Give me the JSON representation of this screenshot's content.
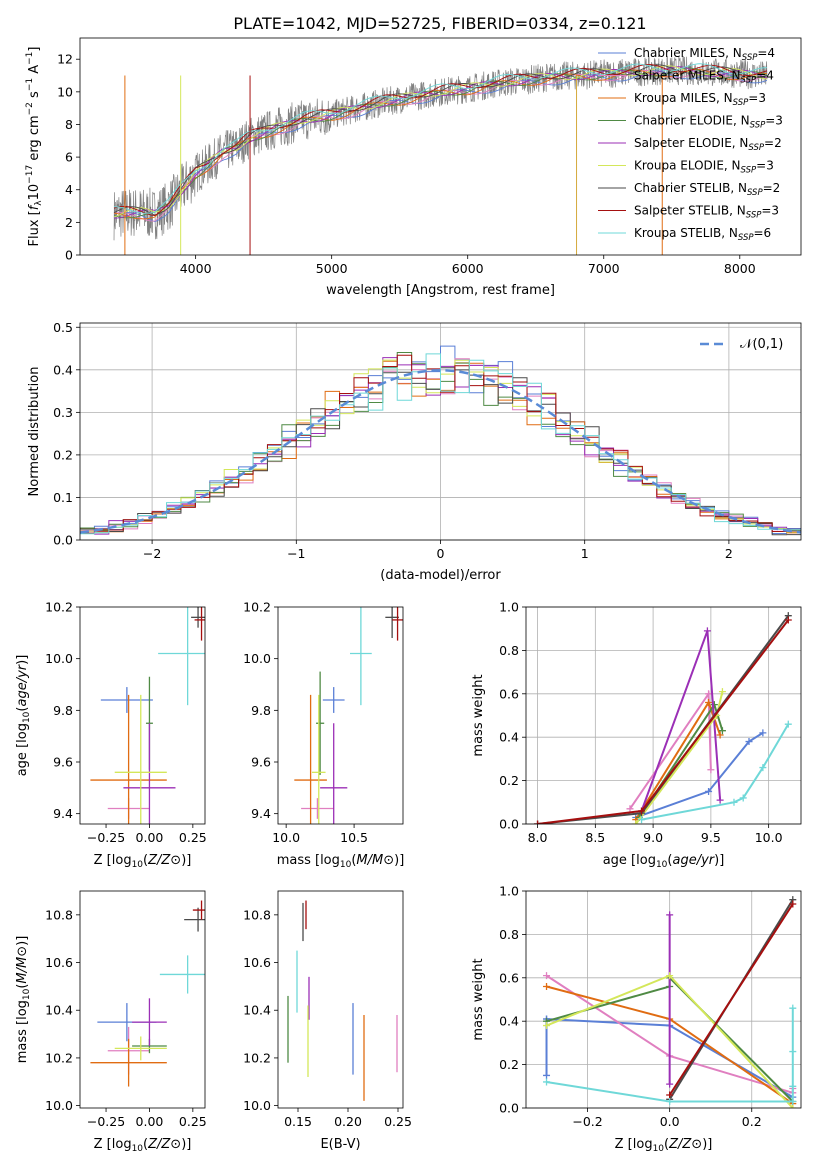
{
  "figure": {
    "title": "PLATE=1042, MJD=52725, FIBERID=0334, z=0.121"
  },
  "colors": {
    "Chabrier MILES": "#5a7fd6",
    "Salpeter MILES": "#e07fc0",
    "Kroupa MILES": "#e06c12",
    "Chabrier ELODIE": "#4f8a44",
    "Salpeter ELODIE": "#9b2fb6",
    "Kroupa ELODIE": "#d4e75a",
    "Chabrier STELIB": "#4a4a4a",
    "Salpeter STELIB": "#a50f0f",
    "Kroupa STELIB": "#6fd8d8"
  },
  "chart_data": [
    {
      "id": "spectrum",
      "type": "line",
      "xlabel": "wavelength [Angstrom, rest frame]",
      "ylabel": "Flux [f_λ10^-17 erg cm^-2 s^-1 A^-1]",
      "xlim": [
        3150,
        8450
      ],
      "ylim": [
        0,
        13.3
      ],
      "xticks": [
        4000,
        5000,
        6000,
        7000,
        8000
      ],
      "yticks": [
        0,
        2,
        4,
        6,
        8,
        10,
        12
      ],
      "data_series": {
        "name": "data",
        "x": [
          3400,
          3500,
          3600,
          3700,
          3800,
          3900,
          4000,
          4100,
          4200,
          4300,
          4400,
          4600,
          4800,
          5000,
          5200,
          5400,
          5600,
          5800,
          6000,
          6200,
          6400,
          6600,
          6800,
          7000,
          7200,
          7400,
          7600,
          7800,
          8000,
          8200
        ],
        "y": [
          2.5,
          2.6,
          2.6,
          2.5,
          3.0,
          4.0,
          5.0,
          5.6,
          6.3,
          6.6,
          7.2,
          7.8,
          8.3,
          8.6,
          9.0,
          9.4,
          9.7,
          10.0,
          10.2,
          10.5,
          10.7,
          10.9,
          11.0,
          11.1,
          11.2,
          11.3,
          11.3,
          11.2,
          11.1,
          11.0
        ]
      },
      "legend": [
        {
          "label": "Chabrier MILES, N",
          "sub": "SSP",
          "suffix": "=4"
        },
        {
          "label": "Salpeter MILES, N",
          "sub": "SSP",
          "suffix": "=4"
        },
        {
          "label": "Kroupa MILES, N",
          "sub": "SSP",
          "suffix": "=3"
        },
        {
          "label": "Chabrier ELODIE, N",
          "sub": "SSP",
          "suffix": "=3"
        },
        {
          "label": "Salpeter ELODIE, N",
          "sub": "SSP",
          "suffix": "=2"
        },
        {
          "label": "Kroupa ELODIE, N",
          "sub": "SSP",
          "suffix": "=3"
        },
        {
          "label": "Chabrier STELIB, N",
          "sub": "SSP",
          "suffix": "=2"
        },
        {
          "label": "Salpeter STELIB, N",
          "sub": "SSP",
          "suffix": "=3"
        },
        {
          "label": "Kroupa STELIB, N",
          "sub": "SSP",
          "suffix": "=6"
        }
      ],
      "legend_placement": "top-right"
    },
    {
      "id": "residuals",
      "type": "histogram",
      "xlabel": "(data-model)/error",
      "ylabel": "Normed distribution",
      "xlim": [
        -2.5,
        2.5
      ],
      "ylim": [
        0,
        0.51
      ],
      "xticks": [
        -2,
        -1,
        0,
        1,
        2
      ],
      "yticks": [
        0.0,
        0.1,
        0.2,
        0.3,
        0.4,
        0.5
      ],
      "grid": true,
      "legend": "𝒩(0,1)",
      "legend_placement": "top-right",
      "bin_width": 0.1
    },
    {
      "id": "age_vs_Z",
      "type": "errorbar",
      "xlabel": "Z [log10(Z/Z⊙)]",
      "ylabel": "age  [log10(age/yr)]",
      "xlim": [
        -0.4,
        0.32
      ],
      "ylim": [
        9.36,
        10.2
      ],
      "xticks": [
        -0.25,
        0.0,
        0.25
      ],
      "yticks": [
        9.4,
        9.6,
        9.8,
        10.0,
        10.2
      ],
      "points": [
        {
          "model": "Chabrier MILES",
          "x": -0.13,
          "y": 9.84,
          "xerr": 0.15,
          "yerr": 0.05
        },
        {
          "model": "Salpeter MILES",
          "x": -0.12,
          "y": 9.42,
          "xerr": 0.12,
          "yerr": 0.04
        },
        {
          "model": "Kroupa MILES",
          "x": -0.12,
          "y": 9.53,
          "xerr": 0.22,
          "yerr": 0.33
        },
        {
          "model": "Chabrier ELODIE",
          "x": 0.0,
          "y": 9.75,
          "xerr": 0.02,
          "yerr": 0.18
        },
        {
          "model": "Salpeter ELODIE",
          "x": 0.0,
          "y": 9.5,
          "xerr": 0.15,
          "yerr": 0.25
        },
        {
          "model": "Kroupa ELODIE",
          "x": -0.05,
          "y": 9.56,
          "xerr": 0.15,
          "yerr": 0.3
        },
        {
          "model": "Chabrier STELIB",
          "x": 0.28,
          "y": 10.16,
          "xerr": 0.04,
          "yerr": 0.04
        },
        {
          "model": "Salpeter STELIB",
          "x": 0.3,
          "y": 10.15,
          "xerr": 0.04,
          "yerr": 0.08
        },
        {
          "model": "Kroupa STELIB",
          "x": 0.22,
          "y": 10.02,
          "xerr": 0.17,
          "yerr": 0.2
        }
      ]
    },
    {
      "id": "age_vs_mass",
      "type": "errorbar",
      "xlabel": "mass [log10(M/M⊙)]",
      "ylabel": "",
      "xlim": [
        9.94,
        10.86
      ],
      "ylim": [
        9.36,
        10.2
      ],
      "xticks": [
        10.0,
        10.5
      ],
      "yticks": [
        9.4,
        9.6,
        9.8,
        10.0,
        10.2
      ],
      "points": [
        {
          "model": "Chabrier MILES",
          "x": 10.35,
          "y": 9.84,
          "xerr": 0.08,
          "yerr": 0.05
        },
        {
          "model": "Salpeter MILES",
          "x": 10.23,
          "y": 9.42,
          "xerr": 0.12,
          "yerr": 0.04
        },
        {
          "model": "Kroupa MILES",
          "x": 10.18,
          "y": 9.53,
          "xerr": 0.12,
          "yerr": 0.33
        },
        {
          "model": "Chabrier ELODIE",
          "x": 10.25,
          "y": 9.75,
          "xerr": 0.03,
          "yerr": 0.2
        },
        {
          "model": "Salpeter ELODIE",
          "x": 10.35,
          "y": 9.5,
          "xerr": 0.1,
          "yerr": 0.25
        },
        {
          "model": "Kroupa ELODIE",
          "x": 10.24,
          "y": 9.56,
          "xerr": 0.05,
          "yerr": 0.3
        },
        {
          "model": "Chabrier STELIB",
          "x": 10.78,
          "y": 10.16,
          "xerr": 0.05,
          "yerr": 0.08
        },
        {
          "model": "Salpeter STELIB",
          "x": 10.82,
          "y": 10.15,
          "xerr": 0.04,
          "yerr": 0.08
        },
        {
          "model": "Kroupa STELIB",
          "x": 10.55,
          "y": 10.02,
          "xerr": 0.08,
          "yerr": 0.2
        }
      ]
    },
    {
      "id": "mass_weight_vs_age",
      "type": "line",
      "xlabel": "age  [log10(age/yr)]",
      "ylabel": "mass weight",
      "xlim": [
        7.9,
        10.28
      ],
      "ylim": [
        0,
        1
      ],
      "xticks": [
        8.0,
        8.5,
        9.0,
        9.5,
        10.0
      ],
      "yticks": [
        0.0,
        0.2,
        0.4,
        0.6,
        0.8,
        1.0
      ],
      "grid": true,
      "series": [
        {
          "model": "Chabrier MILES",
          "x": [
            8.85,
            9.48,
            9.83,
            9.95
          ],
          "y": [
            0.03,
            0.15,
            0.38,
            0.42
          ]
        },
        {
          "model": "Salpeter MILES",
          "x": [
            8.8,
            9.48,
            9.5
          ],
          "y": [
            0.07,
            0.6,
            0.25
          ]
        },
        {
          "model": "Kroupa MILES",
          "x": [
            8.85,
            9.48,
            9.58
          ],
          "y": [
            0.02,
            0.56,
            0.41
          ]
        },
        {
          "model": "Chabrier ELODIE",
          "x": [
            8.88,
            9.53,
            9.6
          ],
          "y": [
            0.03,
            0.55,
            0.43
          ]
        },
        {
          "model": "Salpeter ELODIE",
          "x": [
            8.9,
            9.47,
            9.58
          ],
          "y": [
            0.06,
            0.89,
            0.11
          ]
        },
        {
          "model": "Kroupa ELODIE",
          "x": [
            8.85,
            9.55,
            9.6
          ],
          "y": [
            0.0,
            0.5,
            0.61
          ]
        },
        {
          "model": "Chabrier STELIB",
          "x": [
            8.0,
            8.9,
            10.17
          ],
          "y": [
            0.0,
            0.05,
            0.96
          ]
        },
        {
          "model": "Salpeter STELIB",
          "x": [
            8.0,
            8.9,
            10.17
          ],
          "y": [
            0.0,
            0.06,
            0.94
          ]
        },
        {
          "model": "Kroupa STELIB",
          "x": [
            8.9,
            9.7,
            9.78,
            9.95,
            10.17
          ],
          "y": [
            0.02,
            0.1,
            0.12,
            0.26,
            0.46
          ]
        }
      ]
    },
    {
      "id": "mass_vs_Z",
      "type": "errorbar",
      "xlabel": "Z [log10(Z/Z⊙)]",
      "ylabel": "mass [log10(M/M⊙)]",
      "xlim": [
        -0.4,
        0.32
      ],
      "ylim": [
        9.99,
        10.9
      ],
      "xticks": [
        -0.25,
        0.0,
        0.25
      ],
      "yticks": [
        10.0,
        10.2,
        10.4,
        10.6,
        10.8
      ],
      "points": [
        {
          "model": "Chabrier MILES",
          "x": -0.13,
          "y": 10.35,
          "xerr": 0.17,
          "yerr": 0.08
        },
        {
          "model": "Salpeter MILES",
          "x": -0.12,
          "y": 10.23,
          "xerr": 0.12,
          "yerr": 0.1
        },
        {
          "model": "Kroupa MILES",
          "x": -0.12,
          "y": 10.18,
          "xerr": 0.22,
          "yerr": 0.1
        },
        {
          "model": "Chabrier ELODIE",
          "x": 0.0,
          "y": 10.25,
          "xerr": 0.1,
          "yerr": 0.03
        },
        {
          "model": "Salpeter ELODIE",
          "x": 0.0,
          "y": 10.35,
          "xerr": 0.1,
          "yerr": 0.1
        },
        {
          "model": "Kroupa ELODIE",
          "x": -0.05,
          "y": 10.24,
          "xerr": 0.15,
          "yerr": 0.05
        },
        {
          "model": "Chabrier STELIB",
          "x": 0.28,
          "y": 10.78,
          "xerr": 0.08,
          "yerr": 0.05
        },
        {
          "model": "Salpeter STELIB",
          "x": 0.3,
          "y": 10.82,
          "xerr": 0.05,
          "yerr": 0.04
        },
        {
          "model": "Kroupa STELIB",
          "x": 0.22,
          "y": 10.55,
          "xerr": 0.16,
          "yerr": 0.08
        }
      ]
    },
    {
      "id": "mass_vs_ebv",
      "type": "errorbar",
      "xlabel": "E(B-V)",
      "ylabel": "",
      "xlim": [
        0.13,
        0.255
      ],
      "ylim": [
        9.99,
        10.9
      ],
      "xticks": [
        0.15,
        0.2,
        0.25
      ],
      "yticks": [
        10.0,
        10.2,
        10.4,
        10.6,
        10.8
      ],
      "points": [
        {
          "model": "Chabrier MILES",
          "x": 0.205,
          "y": 10.28,
          "xerr": 0,
          "yerr": 0.15
        },
        {
          "model": "Salpeter MILES",
          "x": 0.249,
          "y": 10.26,
          "xerr": 0,
          "yerr": 0.12
        },
        {
          "model": "Kroupa MILES",
          "x": 0.216,
          "y": 10.2,
          "xerr": 0,
          "yerr": 0.18
        },
        {
          "model": "Chabrier ELODIE",
          "x": 0.14,
          "y": 10.32,
          "xerr": 0,
          "yerr": 0.14
        },
        {
          "model": "Salpeter ELODIE",
          "x": 0.161,
          "y": 10.45,
          "xerr": 0,
          "yerr": 0.09
        },
        {
          "model": "Kroupa ELODIE",
          "x": 0.16,
          "y": 10.27,
          "xerr": 0,
          "yerr": 0.15
        },
        {
          "model": "Chabrier STELIB",
          "x": 0.155,
          "y": 10.77,
          "xerr": 0,
          "yerr": 0.08
        },
        {
          "model": "Salpeter STELIB",
          "x": 0.158,
          "y": 10.8,
          "xerr": 0,
          "yerr": 0.06
        },
        {
          "model": "Kroupa STELIB",
          "x": 0.149,
          "y": 10.52,
          "xerr": 0,
          "yerr": 0.13
        }
      ]
    },
    {
      "id": "mass_weight_vs_Z",
      "type": "line",
      "xlabel": "Z [log10(Z/Z⊙)]",
      "ylabel": "mass weight",
      "xlim": [
        -0.35,
        0.32
      ],
      "ylim": [
        0,
        1
      ],
      "xticks": [
        -0.2,
        0.0,
        0.2
      ],
      "yticks": [
        0.0,
        0.2,
        0.4,
        0.6,
        0.8,
        1.0
      ],
      "grid": true,
      "series": [
        {
          "model": "Chabrier MILES",
          "x": [
            -0.3,
            -0.3,
            -0.3,
            0.0,
            0.3
          ],
          "y": [
            0.15,
            0.41,
            0.41,
            0.38,
            0.05
          ]
        },
        {
          "model": "Salpeter MILES",
          "x": [
            -0.3,
            0.0,
            0.3,
            0.3
          ],
          "y": [
            0.61,
            0.24,
            0.07,
            0.09
          ]
        },
        {
          "model": "Kroupa MILES",
          "x": [
            -0.3,
            0.0,
            0.3
          ],
          "y": [
            0.56,
            0.41,
            0.02
          ]
        },
        {
          "model": "Chabrier ELODIE",
          "x": [
            -0.3,
            0.0,
            0.0,
            0.3
          ],
          "y": [
            0.4,
            0.56,
            0.6,
            0.03
          ]
        },
        {
          "model": "Salpeter ELODIE",
          "x": [
            0.0,
            0.0
          ],
          "y": [
            0.11,
            0.89
          ]
        },
        {
          "model": "Kroupa ELODIE",
          "x": [
            -0.3,
            0.0,
            0.3
          ],
          "y": [
            0.38,
            0.61,
            0.0
          ]
        },
        {
          "model": "Chabrier STELIB",
          "x": [
            0.0,
            0.3
          ],
          "y": [
            0.04,
            0.96
          ]
        },
        {
          "model": "Salpeter STELIB",
          "x": [
            0.0,
            0.3
          ],
          "y": [
            0.06,
            0.94
          ]
        },
        {
          "model": "Kroupa STELIB",
          "x": [
            -0.3,
            0.0,
            0.3,
            0.3,
            0.3,
            0.3
          ],
          "y": [
            0.12,
            0.03,
            0.03,
            0.1,
            0.26,
            0.46
          ]
        }
      ]
    }
  ]
}
